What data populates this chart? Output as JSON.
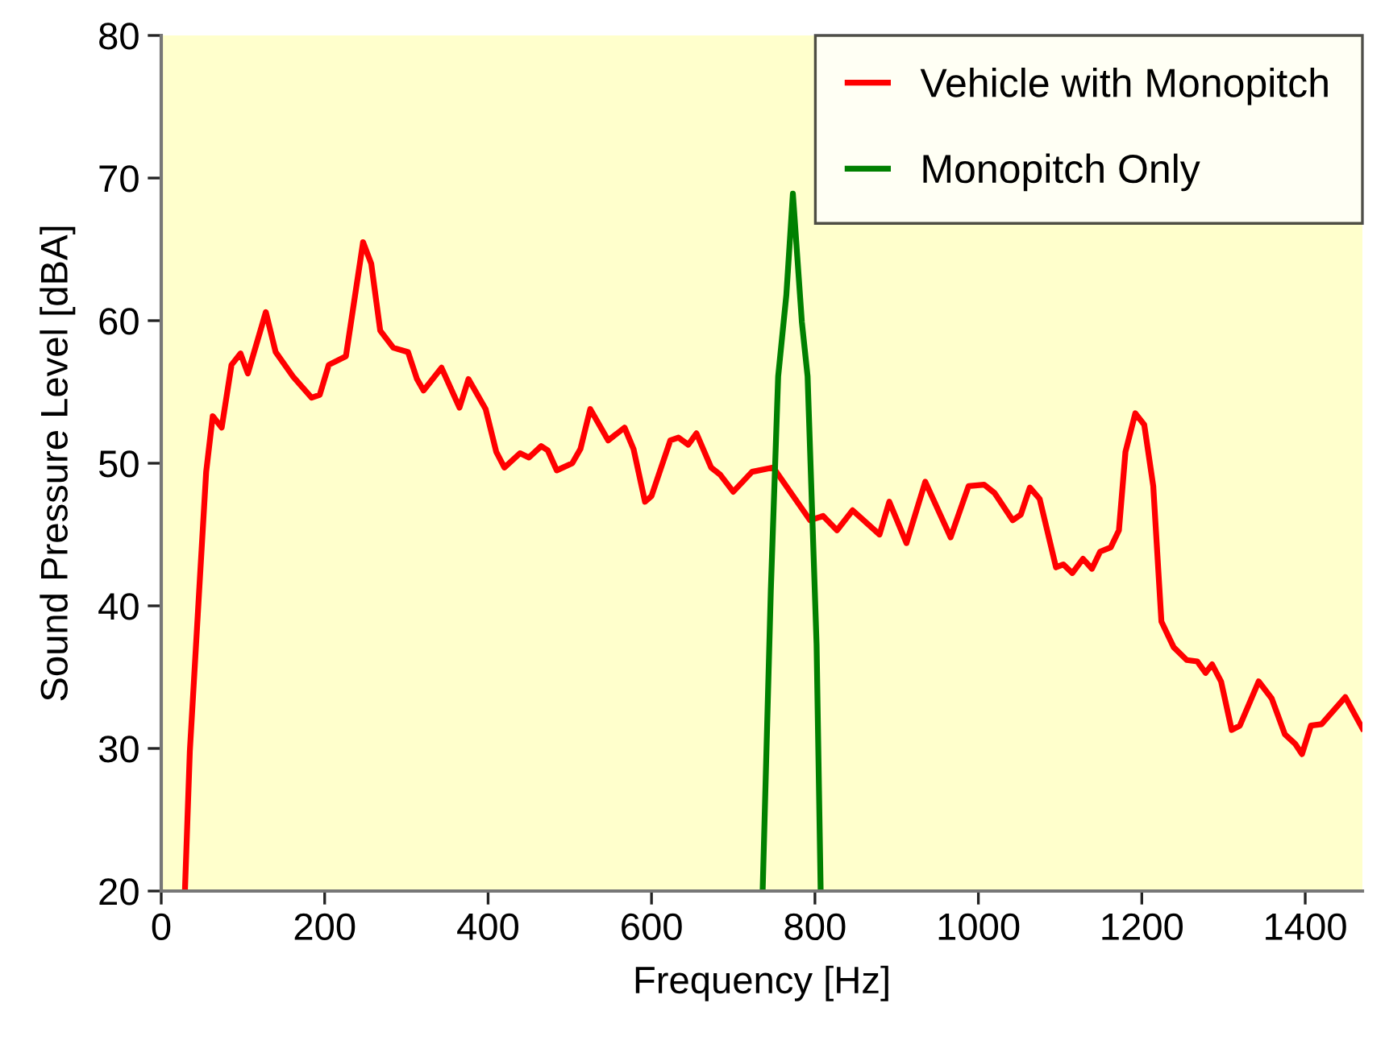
{
  "chart_data": {
    "type": "line",
    "xlabel": "Frequency [Hz]",
    "ylabel": "Sound Pressure Level [dBA]",
    "xlim": [
      0,
      1470
    ],
    "xticks": [
      0,
      200,
      400,
      600,
      800,
      1000,
      1200,
      1400
    ],
    "ylim": [
      20,
      80
    ],
    "yticks": [
      20,
      30,
      40,
      50,
      60,
      70,
      80
    ],
    "grid": false,
    "legend": "top right",
    "marker": "none",
    "line_style": "solid",
    "series": [
      {
        "name": "Vehicle with Monopitch",
        "color": "#ff0000",
        "x": [
          29,
          35,
          48,
          55,
          63,
          74,
          86,
          97,
          106,
          128,
          140,
          161,
          184,
          194,
          205,
          226,
          247,
          257,
          268,
          284,
          302,
          313,
          321,
          343,
          365,
          376,
          397,
          410,
          420,
          439,
          450,
          465,
          473,
          484,
          503,
          513,
          525,
          547,
          567,
          578,
          592,
          600,
          623,
          633,
          645,
          655,
          673,
          684,
          700,
          723,
          749,
          794,
          810,
          827,
          846,
          879,
          891,
          912,
          935,
          966,
          988,
          1007,
          1020,
          1042,
          1052,
          1063,
          1075,
          1095,
          1104,
          1115,
          1128,
          1139,
          1149,
          1162,
          1172,
          1180,
          1192,
          1203,
          1214,
          1224,
          1239,
          1255,
          1268,
          1278,
          1286,
          1297,
          1310,
          1320,
          1343,
          1359,
          1375,
          1388,
          1396,
          1407,
          1420,
          1449,
          1470
        ],
        "values": [
          20,
          29.8,
          42.6,
          49.4,
          53.3,
          52.5,
          56.9,
          57.7,
          56.3,
          60.6,
          57.8,
          56.1,
          54.6,
          54.8,
          56.9,
          57.5,
          65.5,
          64.0,
          59.3,
          58.1,
          57.8,
          55.9,
          55.1,
          56.7,
          53.9,
          55.9,
          53.8,
          50.8,
          49.7,
          50.7,
          50.4,
          51.2,
          50.9,
          49.5,
          50.0,
          51.0,
          53.8,
          51.6,
          52.5,
          51.0,
          47.3,
          47.7,
          51.6,
          51.8,
          51.3,
          52.1,
          49.7,
          49.2,
          48.0,
          49.4,
          49.7,
          46.0,
          46.3,
          45.3,
          46.7,
          45.0,
          47.3,
          44.4,
          48.7,
          44.8,
          48.4,
          48.5,
          47.9,
          46.0,
          46.4,
          48.3,
          47.5,
          42.7,
          42.9,
          42.3,
          43.3,
          42.6,
          43.8,
          44.1,
          45.3,
          50.8,
          53.5,
          52.7,
          48.4,
          38.9,
          37.1,
          36.2,
          36.1,
          35.3,
          35.9,
          34.7,
          31.3,
          31.6,
          34.7,
          33.5,
          31.0,
          30.3,
          29.6,
          31.6,
          31.7,
          33.6,
          31.4
        ]
      },
      {
        "name": "Monopitch Only",
        "color": "#008000",
        "x": [
          736,
          746,
          755,
          765,
          773,
          784,
          791,
          802,
          807
        ],
        "values": [
          20,
          41.1,
          56.1,
          61.8,
          68.9,
          59.9,
          56.1,
          37.3,
          20
        ]
      }
    ]
  }
}
